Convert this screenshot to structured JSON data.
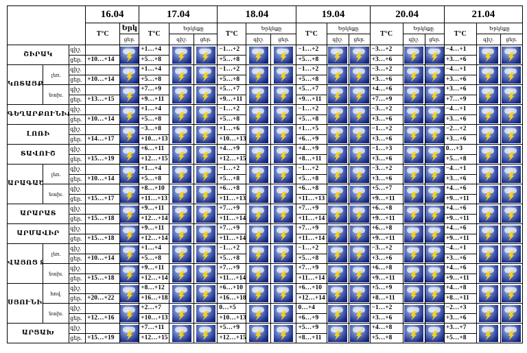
{
  "header": {
    "temp": "T°C",
    "sky": "Երկնքը",
    "sky_short": "Երկ",
    "night": "գիշ.",
    "day": "ցեր.",
    "dates": [
      "16.04",
      "17.04",
      "18.04",
      "19.04",
      "20.04",
      "21.04"
    ]
  },
  "regions": [
    {
      "name": "ՇԻՐԱԿ",
      "parts": [
        {
          "first": "+10…+14",
          "days": [
            [
              "+1…+4",
              "+5…+8"
            ],
            [
              "−1…+2",
              "+5…+8"
            ],
            [
              "−1…+2",
              "+5…+8"
            ],
            [
              "−3…+2",
              "+3…+6"
            ],
            [
              "−4…+1",
              "+3…+6"
            ]
          ]
        }
      ]
    },
    {
      "name": "ԿՈՏԱՅՔ",
      "parts": [
        {
          "sub": "լեռ.",
          "first": "+10…+14",
          "days": [
            [
              "+1…+4",
              "+5…+8"
            ],
            [
              "−1…+2",
              "+5…+8"
            ],
            [
              "−1…+2",
              "+5…+8"
            ],
            [
              "−3…+2",
              "+3…+6"
            ],
            [
              "−4…+1",
              "+3…+6"
            ]
          ]
        },
        {
          "sub": "նախ.",
          "first": "+13…+15",
          "days": [
            [
              "+7…+9",
              "+9…+11"
            ],
            [
              "+5…+7",
              "+9…+11"
            ],
            [
              "+5…+7",
              "+9…+11"
            ],
            [
              "+4…+6",
              "+7…+9"
            ],
            [
              "+3…+6",
              "+7…+9"
            ]
          ]
        }
      ]
    },
    {
      "name": "ԳԵՂԱՐՔՈՒՆԻՔ",
      "parts": [
        {
          "first": "+10…+14",
          "days": [
            [
              "+1…+4",
              "+5…+8"
            ],
            [
              "−1…+2",
              "+5…+8"
            ],
            [
              "−1…+2",
              "+5…+8"
            ],
            [
              "−3…+2",
              "+3…+6"
            ],
            [
              "−4…+1",
              "+3…+6"
            ]
          ]
        }
      ]
    },
    {
      "name": "ԼՈՌԻ",
      "parts": [
        {
          "first": "+14…+17",
          "days": [
            [
              "−3…+8",
              "+10…+13"
            ],
            [
              "+1…+6",
              "+10…+13"
            ],
            [
              "+1…+5",
              "+6…+9"
            ],
            [
              "−1…+2",
              "+3…+6"
            ],
            [
              "−2…+2",
              "+3…+6"
            ]
          ]
        }
      ]
    },
    {
      "name": "ՏԱՎՈՒՇ",
      "parts": [
        {
          "first": "+15…+19",
          "days": [
            [
              "+6…+11",
              "+12…+15"
            ],
            [
              "+4…+9",
              "+12…+15"
            ],
            [
              "+4…+9",
              "+8…+11"
            ],
            [
              "−1…+3",
              "+3…+6"
            ],
            [
              "0…+3",
              "+5…+8"
            ]
          ]
        }
      ]
    },
    {
      "name": "ԱՐԱԳԱԾՈՏՆ",
      "parts": [
        {
          "sub": "լեռ.",
          "first": "+10…+14",
          "days": [
            [
              "+1…+4",
              "+5…+8"
            ],
            [
              "−1…+2",
              "+5…+8"
            ],
            [
              "−1…+2",
              "+5…+8"
            ],
            [
              "−3…+2",
              "+3…+6"
            ],
            [
              "−4…+1",
              "+3…+6"
            ]
          ]
        },
        {
          "sub": "նախ.",
          "first": "+15…+17",
          "days": [
            [
              "+8…+10",
              "+11…+13"
            ],
            [
              "+6…+8",
              "+11…+13"
            ],
            [
              "+6…+8",
              "+11…+13"
            ],
            [
              "+5…+7",
              "+9…+11"
            ],
            [
              "+4…+6",
              "+9…+11"
            ]
          ]
        }
      ]
    },
    {
      "name": "ԱՐԱՐԱՏ",
      "parts": [
        {
          "first": "+15…+18",
          "days": [
            [
              "+9…+11",
              "+12…+14"
            ],
            [
              "+7…+9",
              "+11…+14"
            ],
            [
              "+7…+9",
              "+11…+14"
            ],
            [
              "+6…+8",
              "+9…+11"
            ],
            [
              "+4…+6",
              "+9…+11"
            ]
          ]
        }
      ]
    },
    {
      "name": "ԱՐՄԱՎԻՐ",
      "parts": [
        {
          "first": "+15…+18",
          "days": [
            [
              "+9…+11",
              "+12…+14"
            ],
            [
              "+7…+9",
              "+11…+14"
            ],
            [
              "+7…+9",
              "+11…+14"
            ],
            [
              "+6…+8",
              "+9…+11"
            ],
            [
              "+4…+6",
              "+9…+11"
            ]
          ]
        }
      ]
    },
    {
      "name": "ՎԱՅՈՑ ՁՈՐ",
      "parts": [
        {
          "sub": "լեռ.",
          "first": "+10…+14",
          "days": [
            [
              "+1…+4",
              "+5…+8"
            ],
            [
              "−1…+2",
              "+5…+8"
            ],
            [
              "−1…+2",
              "+5…+8"
            ],
            [
              "−3…+2",
              "+3…+6"
            ],
            [
              "−4…+1",
              "+3…+6"
            ]
          ]
        },
        {
          "sub": "նախ.",
          "first": "+15…+18",
          "days": [
            [
              "+9…+11",
              "+12…+14"
            ],
            [
              "+7…+9",
              "+11…+14"
            ],
            [
              "+7…+9",
              "+11…+14"
            ],
            [
              "+6…+8",
              "+9…+11"
            ],
            [
              "+4…+6",
              "+9…+11"
            ]
          ]
        }
      ]
    },
    {
      "name": "ՍՅՈՒՆԻՔ",
      "parts": [
        {
          "sub": "հով.",
          "first": "+20…+22",
          "days": [
            [
              "+8…+12",
              "+16…+18"
            ],
            [
              "+6…+10",
              "+16…+18"
            ],
            [
              "+6…+10",
              "+12…+14"
            ],
            [
              "+5…+9",
              "+8…+11"
            ],
            [
              "+4…+8",
              "+8…+11"
            ]
          ]
        },
        {
          "sub": "նախ.",
          "first": "+12…+16",
          "days": [
            [
              "+2…+7",
              "+10…+13"
            ],
            [
              "0…+5",
              "+10…+13"
            ],
            [
              "0…+4",
              "+6…+9"
            ],
            [
              "−1…+2",
              "+3…+6"
            ],
            [
              "−2…+3",
              "+3…+6"
            ]
          ]
        }
      ]
    },
    {
      "name": "ԱՐՑԱԽ",
      "parts": [
        {
          "first": "+15…+19",
          "days": [
            [
              "+7…+11",
              "+12…+15"
            ],
            [
              "+5…+9",
              "+12…+15"
            ],
            [
              "+5…+9",
              "+8…+11"
            ],
            [
              "+4…+8",
              "+5…+8"
            ],
            [
              "+3…+7",
              "+5…+8"
            ]
          ]
        }
      ]
    }
  ]
}
